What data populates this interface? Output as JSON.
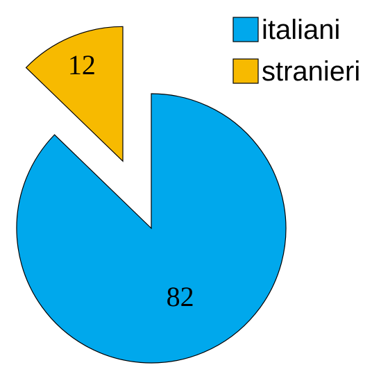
{
  "chart_data": {
    "type": "pie",
    "categories": [
      "italiani",
      "stranieri"
    ],
    "values": [
      82,
      12
    ],
    "colors": [
      "#00A8EC",
      "#F7BA00"
    ],
    "exploded": [
      false,
      true
    ],
    "title": "",
    "legend": {
      "placement": "top-right",
      "entries": [
        "italiani",
        "stranieri"
      ]
    }
  }
}
